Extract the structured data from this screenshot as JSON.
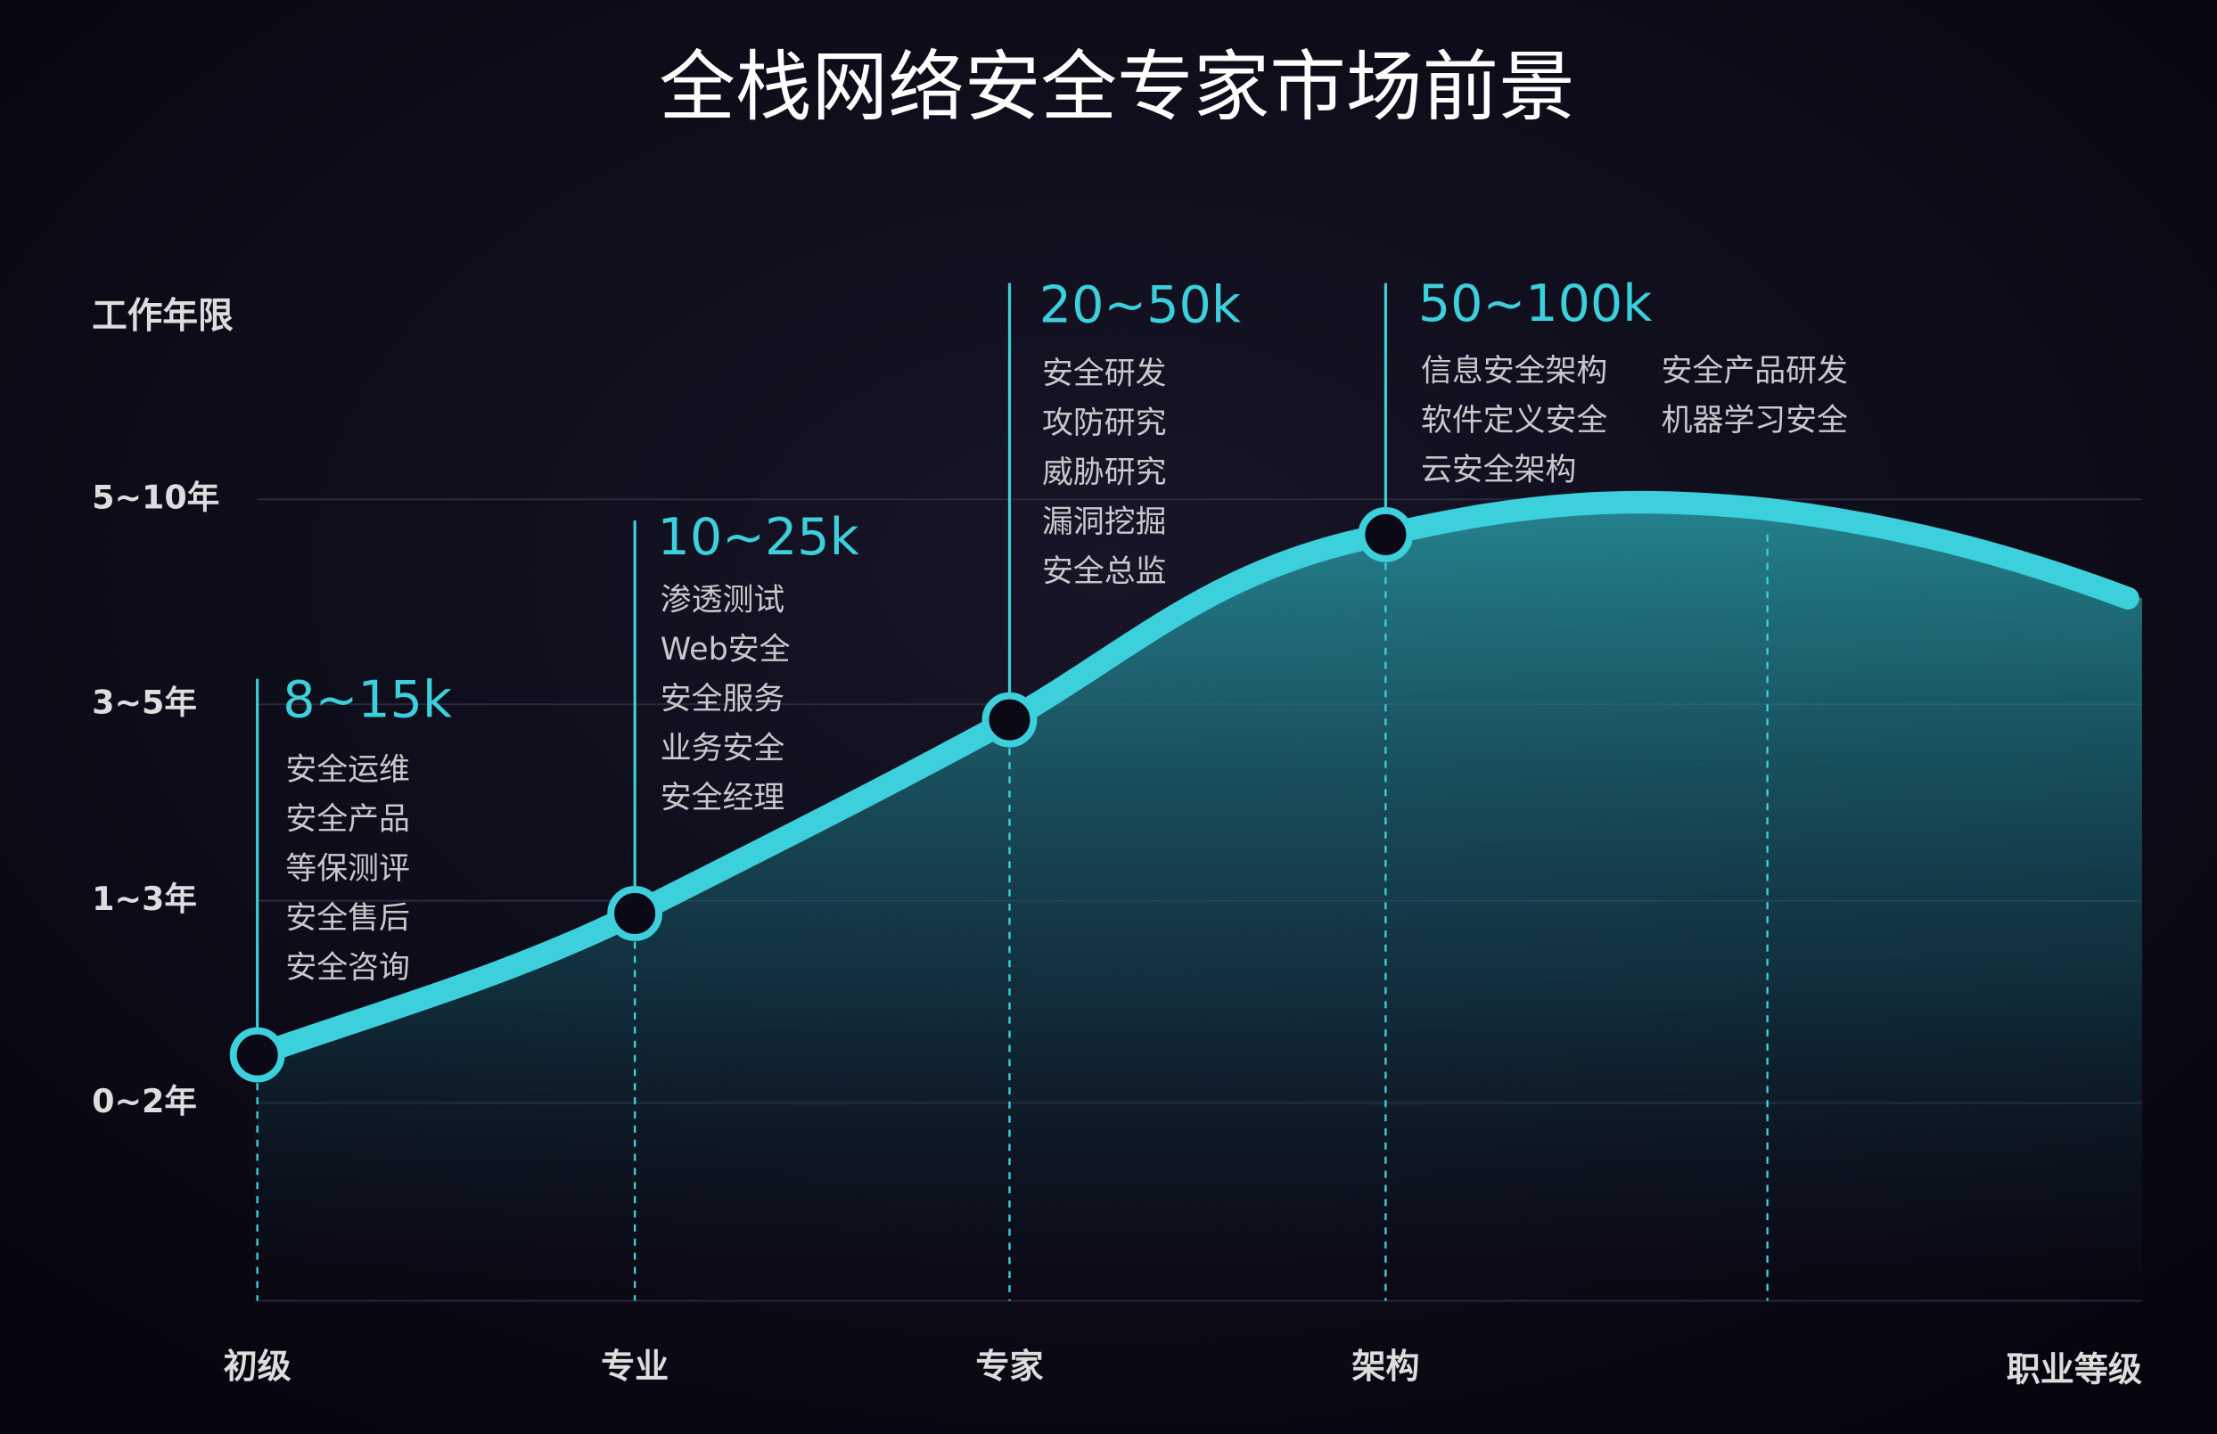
{
  "title": "全栈网络安全专家市场前景",
  "y_axis_title": "工作年限",
  "y_labels": [
    "5~10年",
    "3~5年",
    "1~3年",
    "0~2年"
  ],
  "x_labels": [
    "初级",
    "专业",
    "专家",
    "架构"
  ],
  "x_axis_title": "职业等级",
  "stages": [
    {
      "salary": "8~15k",
      "roles": [
        [
          "安全运维",
          "安全产品",
          "等保测评",
          "安全售后",
          "安全咨询"
        ]
      ]
    },
    {
      "salary": "10~25k",
      "roles": [
        [
          "渗透测试",
          "Web安全",
          "安全服务",
          "业务安全",
          "安全经理"
        ]
      ]
    },
    {
      "salary": "20~50k",
      "roles": [
        [
          "安全研发",
          "攻防研究",
          "威胁研究",
          "漏洞挖掘",
          "安全总监"
        ]
      ]
    },
    {
      "salary": "50~100k",
      "roles": [
        [
          "信息安全架构",
          "软件定义安全",
          "云安全架构"
        ],
        [
          "安全产品研发",
          "机器学习安全"
        ]
      ]
    }
  ]
}
